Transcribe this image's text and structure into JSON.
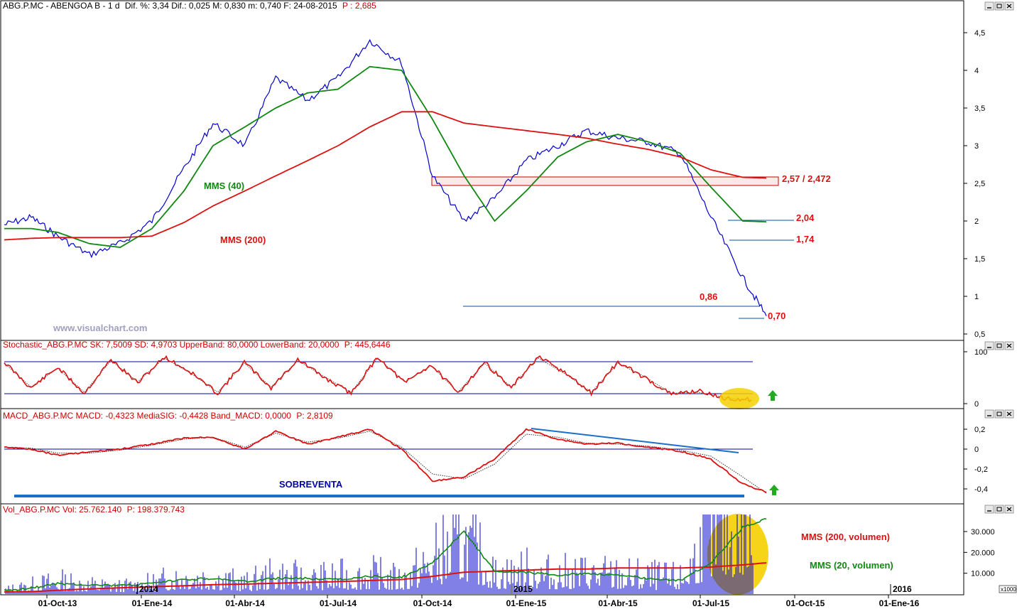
{
  "main": {
    "header_symbol": "ABG.P.MC - ABENGOA B - 1 d",
    "header_stats": "Dif. %: 3,34  Dif.: 0,025  M: 0,830  m: 0,740  F: 24-08-2015",
    "header_p": "P : 2,685",
    "watermark": "www.visualchart.com",
    "y_ticks": [
      "4,5",
      "4",
      "3,5",
      "3",
      "2,5",
      "2",
      "1,5",
      "1",
      "0,5"
    ],
    "labels": {
      "mms40": "MMS (40)",
      "mms200": "MMS (200)",
      "resistance": "2,57 / 2,472",
      "level_204": "2,04",
      "level_174": "1,74",
      "level_086": "0,86",
      "level_070": "0,70"
    }
  },
  "stochastic": {
    "header": "Stochastic_ABG.P.MC SK: 7,5009  SD: 4,9703  UpperBand: 80,0000  LowerBand: 20,0000",
    "header_p": "P: 445,6446",
    "y_ticks": [
      "100",
      "0"
    ]
  },
  "macd": {
    "header": "MACD_ABG.P.MC MACD: -0,4323  MediaSIG: -0,4428  Band_MACD: 0,0000",
    "header_p": "P: 2,8109",
    "y_ticks": [
      "0,2",
      "0",
      "-0,2",
      "-0,4"
    ],
    "label": "SOBREVENTA"
  },
  "volume": {
    "header": "Vol_ABG.P.MC Vol: 25.762.140",
    "header_p": "P: 198.379.743",
    "y_ticks": [
      "30.000",
      "20.000",
      "10.000"
    ],
    "unit": "x1000",
    "mms200_label": "MMS (200, volumen)",
    "mms20_label": "MMS (20, volumen)",
    "year_marks": [
      "2014",
      "2015",
      "2016"
    ]
  },
  "x_axis": {
    "ticks": [
      "01-Oct-13",
      "01-Ene-14",
      "01-Abr-14",
      "01-Jul-14",
      "01-Oct-14",
      "01-Ene-15",
      "01-Abr-15",
      "01-Jul-15",
      "01-Oct-15",
      "01-Ene-16"
    ]
  },
  "colors": {
    "price": "#0000cc",
    "mms40": "#118811",
    "mms200": "#dd1111",
    "annotation_red": "#dd1111",
    "annotation_green": "#118811",
    "header_red": "#cc0000",
    "band_blue": "#0000aa",
    "trend_blue": "#1a6fc9",
    "highlight": "#f5d000",
    "arrow": "#22aa22"
  },
  "chart_data": [
    {
      "type": "line",
      "title": "ABG.P.MC - ABENGOA B - 1 d",
      "x": [
        "2013-08-01",
        "2013-09-01",
        "2013-10-01",
        "2013-11-01",
        "2013-12-01",
        "2014-01-01",
        "2014-02-01",
        "2014-03-01",
        "2014-04-01",
        "2014-05-01",
        "2014-06-01",
        "2014-07-01",
        "2014-08-01",
        "2014-09-01",
        "2014-10-01",
        "2014-11-01",
        "2014-12-01",
        "2015-01-01",
        "2015-02-01",
        "2015-03-01",
        "2015-04-01",
        "2015-05-01",
        "2015-06-01",
        "2015-07-01",
        "2015-08-01",
        "2015-08-24"
      ],
      "series": [
        {
          "name": "ABG.P.MC",
          "values": [
            1.95,
            2.05,
            1.8,
            1.55,
            1.7,
            2.0,
            2.7,
            3.3,
            3.0,
            3.9,
            3.6,
            3.9,
            4.4,
            4.1,
            2.6,
            2.0,
            2.3,
            2.8,
            3.0,
            3.2,
            3.1,
            3.05,
            2.9,
            2.05,
            1.25,
            0.74
          ]
        },
        {
          "name": "MMS (40)",
          "values": [
            1.9,
            1.9,
            1.85,
            1.7,
            1.65,
            1.9,
            2.4,
            3.0,
            3.25,
            3.5,
            3.7,
            3.75,
            4.05,
            4.0,
            3.35,
            2.6,
            2.0,
            2.4,
            2.85,
            3.05,
            3.15,
            3.05,
            2.9,
            2.45,
            2.0,
            1.99
          ]
        },
        {
          "name": "MMS (200)",
          "values": [
            1.75,
            1.77,
            1.78,
            1.78,
            1.78,
            1.8,
            1.98,
            2.2,
            2.4,
            2.6,
            2.8,
            3.0,
            3.25,
            3.45,
            3.45,
            3.3,
            3.25,
            3.2,
            3.15,
            3.1,
            3.02,
            2.95,
            2.85,
            2.68,
            2.58,
            2.57
          ]
        }
      ],
      "annotations": [
        "2,57 / 2,472",
        "2,04",
        "1,74",
        "0,86",
        "0,70"
      ],
      "ylim": [
        0.45,
        4.95
      ]
    },
    {
      "type": "line",
      "title": "Stochastic_ABG.P.MC",
      "series": [
        {
          "name": "SK",
          "values": [
            80,
            30,
            70,
            20,
            85,
            40,
            90,
            60,
            20,
            80,
            30,
            85,
            50,
            20,
            90,
            40,
            75,
            20,
            80,
            30,
            90,
            60,
            20,
            80,
            50,
            18,
            25,
            10,
            7.5
          ]
        },
        {
          "name": "SD",
          "values": [
            78,
            32,
            68,
            22,
            83,
            42,
            88,
            58,
            22,
            78,
            32,
            83,
            52,
            22,
            88,
            42,
            73,
            22,
            78,
            32,
            88,
            58,
            22,
            78,
            52,
            20,
            22,
            12,
            4.97
          ]
        }
      ],
      "bands": {
        "upper": 80,
        "lower": 20
      },
      "ylim": [
        0,
        100
      ]
    },
    {
      "type": "line",
      "title": "MACD_ABG.P.MC",
      "x": [
        "2013-08-01",
        "2013-09-01",
        "2013-10-01",
        "2013-11-01",
        "2013-12-01",
        "2014-01-01",
        "2014-02-01",
        "2014-03-01",
        "2014-04-01",
        "2014-05-01",
        "2014-06-01",
        "2014-07-01",
        "2014-08-01",
        "2014-09-01",
        "2014-10-01",
        "2014-11-01",
        "2014-12-01",
        "2015-01-01",
        "2015-02-01",
        "2015-03-01",
        "2015-04-01",
        "2015-05-01",
        "2015-06-01",
        "2015-07-01",
        "2015-08-01",
        "2015-08-24"
      ],
      "series": [
        {
          "name": "MACD",
          "values": [
            0.02,
            0.0,
            -0.06,
            -0.03,
            0.0,
            0.05,
            0.11,
            0.12,
            0.0,
            0.18,
            0.05,
            0.12,
            0.2,
            0.0,
            -0.32,
            -0.28,
            -0.1,
            0.2,
            0.1,
            0.05,
            0.06,
            0.02,
            -0.02,
            -0.1,
            -0.35,
            -0.4323
          ]
        },
        {
          "name": "MediaSIG",
          "values": [
            0.02,
            0.01,
            -0.04,
            -0.04,
            -0.01,
            0.04,
            0.1,
            0.12,
            0.02,
            0.16,
            0.07,
            0.11,
            0.18,
            0.02,
            -0.25,
            -0.3,
            -0.15,
            0.15,
            0.12,
            0.06,
            0.05,
            0.03,
            -0.01,
            -0.07,
            -0.28,
            -0.4428
          ]
        }
      ],
      "ylim": [
        -0.5,
        0.25
      ]
    },
    {
      "type": "bar",
      "title": "Vol_ABG.P.MC",
      "x": [
        "2013-08-01",
        "2013-09-01",
        "2013-10-01",
        "2013-11-01",
        "2013-12-01",
        "2014-01-01",
        "2014-02-01",
        "2014-03-01",
        "2014-04-01",
        "2014-05-01",
        "2014-06-01",
        "2014-07-01",
        "2014-08-01",
        "2014-09-01",
        "2014-10-01",
        "2014-11-01",
        "2014-12-01",
        "2015-01-01",
        "2015-02-01",
        "2015-03-01",
        "2015-04-01",
        "2015-05-01",
        "2015-06-01",
        "2015-07-01",
        "2015-08-01",
        "2015-08-24"
      ],
      "series": [
        {
          "name": "Vol",
          "values": [
            2000,
            4000,
            6000,
            4500,
            3500,
            5000,
            9000,
            8000,
            5000,
            9000,
            7000,
            8000,
            9000,
            7000,
            16000,
            26000,
            9000,
            11000,
            9000,
            10000,
            9000,
            8000,
            7000,
            30000,
            33000,
            25762
          ]
        },
        {
          "name": "MMS (200, volumen)",
          "values": [
            1000,
            1200,
            1800,
            2500,
            3000,
            3500,
            4000,
            4500,
            4800,
            5200,
            5600,
            6000,
            6500,
            7000,
            8500,
            10500,
            11000,
            11500,
            12000,
            12000,
            12500,
            12500,
            12500,
            13000,
            14000,
            15000
          ]
        },
        {
          "name": "MMS (20, volumen)",
          "values": [
            1500,
            3000,
            5000,
            4500,
            4000,
            5000,
            7000,
            7500,
            6000,
            7500,
            7500,
            7000,
            8500,
            8000,
            15000,
            30000,
            11000,
            10500,
            9000,
            10000,
            9000,
            7500,
            6500,
            15000,
            32000,
            36000
          ]
        }
      ],
      "ylim": [
        0,
        39000
      ]
    }
  ]
}
